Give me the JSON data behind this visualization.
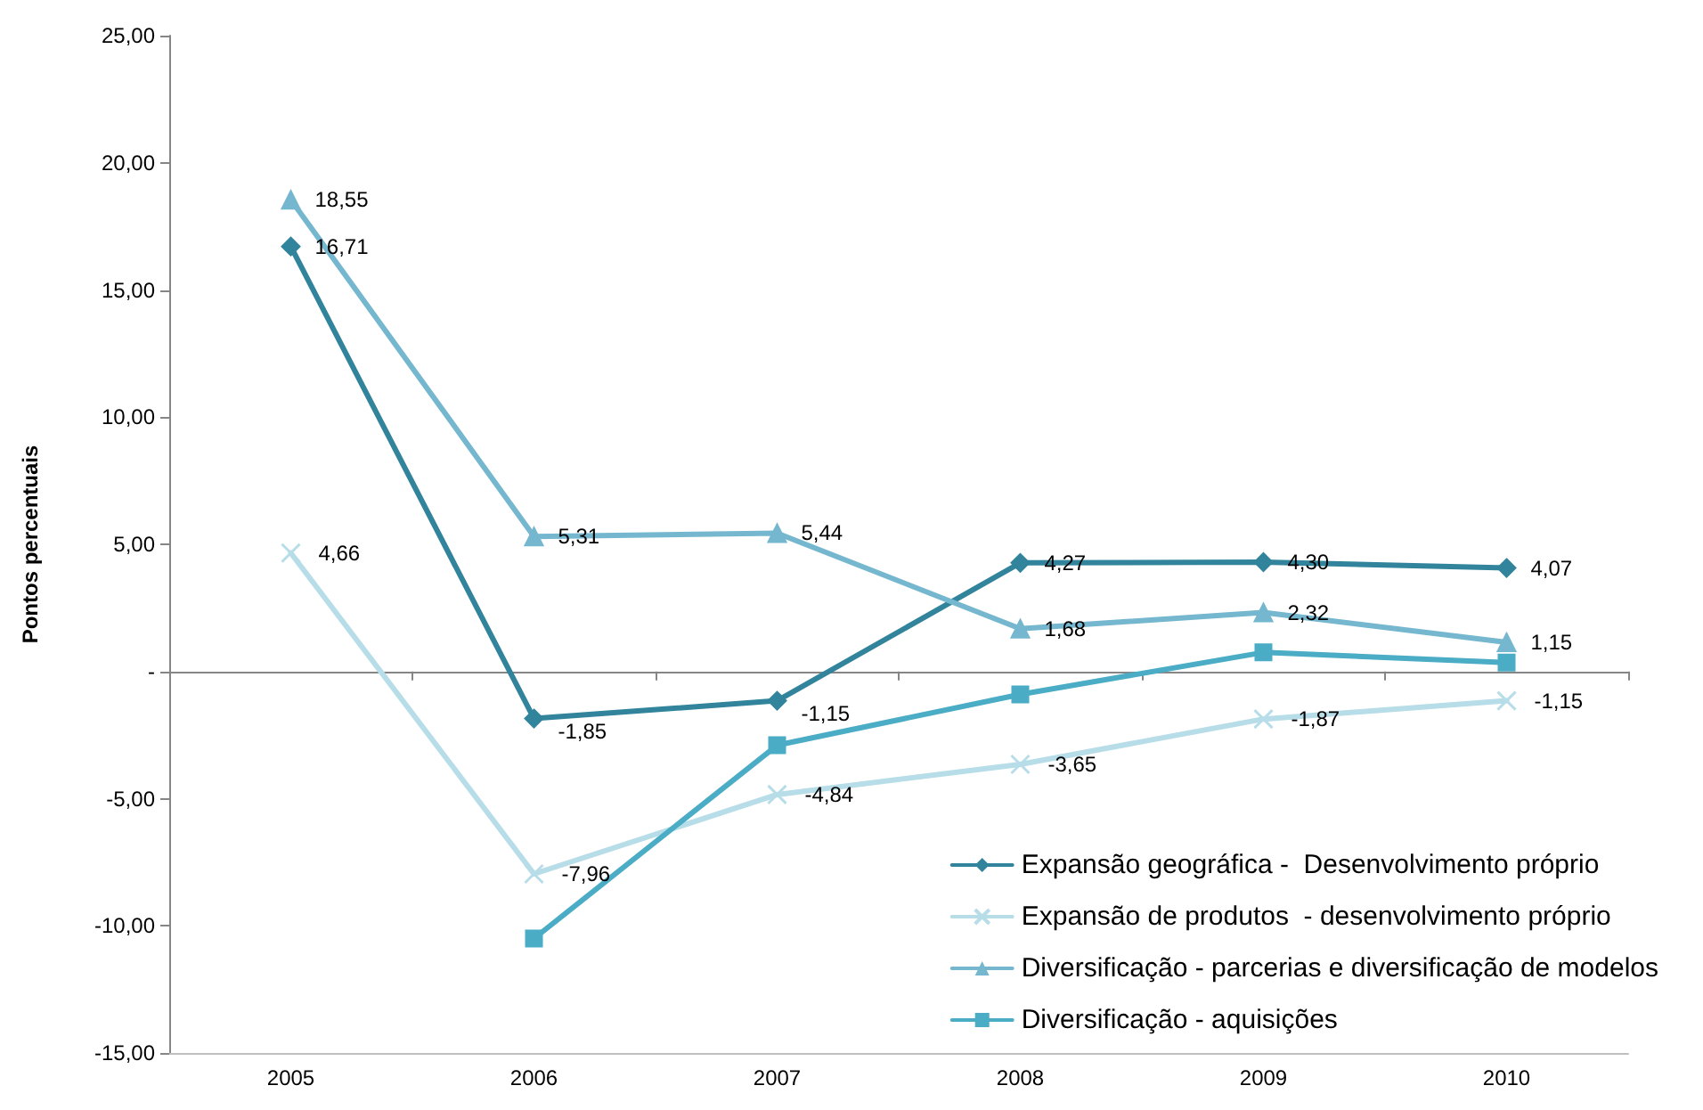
{
  "chart_data": {
    "type": "line",
    "ylabel": "Pontos percentuais",
    "categories": [
      "2005",
      "2006",
      "2007",
      "2008",
      "2009",
      "2010"
    ],
    "ylim": [
      -15,
      25
    ],
    "yticks": [
      {
        "value": -15,
        "label": "-15,00"
      },
      {
        "value": -10,
        "label": "-10,00"
      },
      {
        "value": -5,
        "label": "-5,00"
      },
      {
        "value": 0,
        "label": "-"
      },
      {
        "value": 5,
        "label": "5,00"
      },
      {
        "value": 10,
        "label": "10,00"
      },
      {
        "value": 15,
        "label": "15,00"
      },
      {
        "value": 20,
        "label": "20,00"
      },
      {
        "value": 25,
        "label": "25,00"
      }
    ],
    "legend": "bottom right",
    "line_style": "solid",
    "series": [
      {
        "name": "Expansão geográfica -  Desenvolvimento próprio",
        "color": "#31849b",
        "marker": "diamond",
        "values": [
          16.71,
          -1.85,
          -1.15,
          4.27,
          4.3,
          4.07
        ],
        "value_labels": [
          "16,71",
          "-1,85",
          "-1,15",
          "4,27",
          "4,30",
          "4,07"
        ]
      },
      {
        "name": "Expansão de produtos  - desenvolvimento próprio",
        "color": "#b7dde8",
        "marker": "cross",
        "values": [
          4.66,
          -7.96,
          -4.84,
          -3.65,
          -1.87,
          -1.15
        ],
        "value_labels": [
          "4,66",
          "-7,96",
          "-4,84",
          "-3,65",
          "-1,87",
          "-1,15"
        ]
      },
      {
        "name": "Diversificação - parcerias e diversificação de modelos",
        "color": "#75b7cf",
        "marker": "triangle",
        "values": [
          18.55,
          5.31,
          5.44,
          1.68,
          2.32,
          1.15
        ],
        "value_labels": [
          "18,55",
          "5,31",
          "5,44",
          "1,68",
          "2,32",
          "1,15"
        ]
      },
      {
        "name": "Diversificação - aquisições",
        "color": "#4bacc6",
        "marker": "square",
        "values": [
          null,
          -10.5,
          -2.9,
          -0.9,
          0.75,
          0.35
        ]
      }
    ]
  }
}
